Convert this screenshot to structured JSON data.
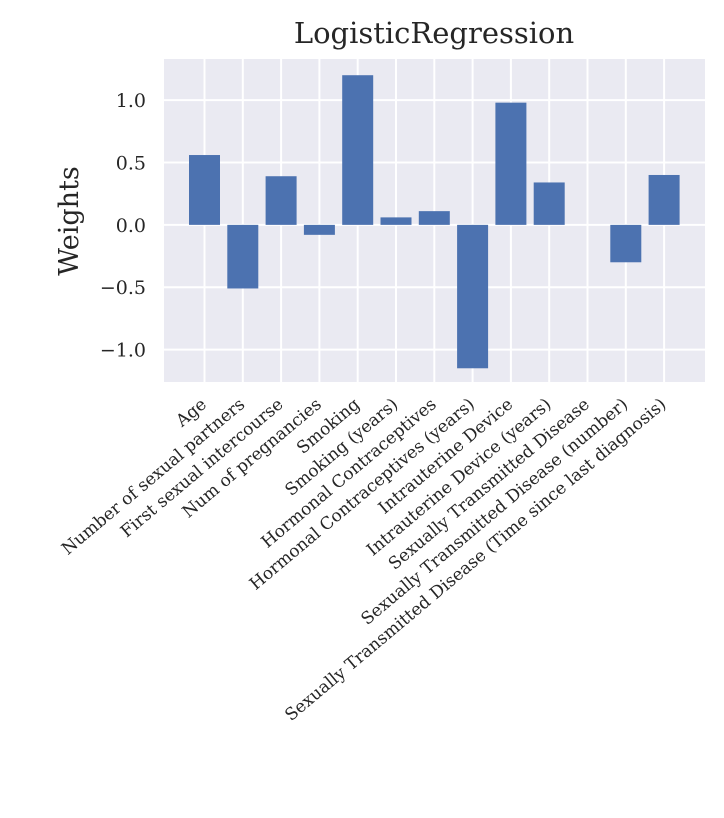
{
  "chart_data": {
    "type": "bar",
    "title": "LogisticRegression",
    "xlabel": "",
    "ylabel": "Weights",
    "categories": [
      "Age",
      "Number of sexual partners",
      "First sexual intercourse",
      "Num of pregnancies",
      "Smoking",
      "Smoking (years)",
      "Hormonal Contraceptives",
      "Hormonal Contraceptives (years)",
      "Intrauterine Device",
      "Intrauterine Device (years)",
      "Sexually Transmitted Disease",
      "Sexually Transmitted Disease (number)",
      "Sexually Transmitted Disease (Time since last diagnosis)"
    ],
    "values": [
      0.56,
      -0.51,
      0.39,
      -0.08,
      1.2,
      0.06,
      0.11,
      -1.15,
      0.98,
      0.34,
      0.0,
      -0.3,
      0.4
    ],
    "ylim": [
      -1.26,
      1.33
    ],
    "yticks": [
      1.0,
      0.5,
      0.0,
      -0.5,
      -1.0
    ],
    "ytick_labels": [
      "1.0",
      "0.5",
      "0.0",
      "−0.5",
      "−1.0"
    ],
    "grid": true,
    "colors": {
      "bar": "#4c72b0",
      "plot_bg": "#eaeaf2",
      "grid": "#ffffff"
    }
  }
}
